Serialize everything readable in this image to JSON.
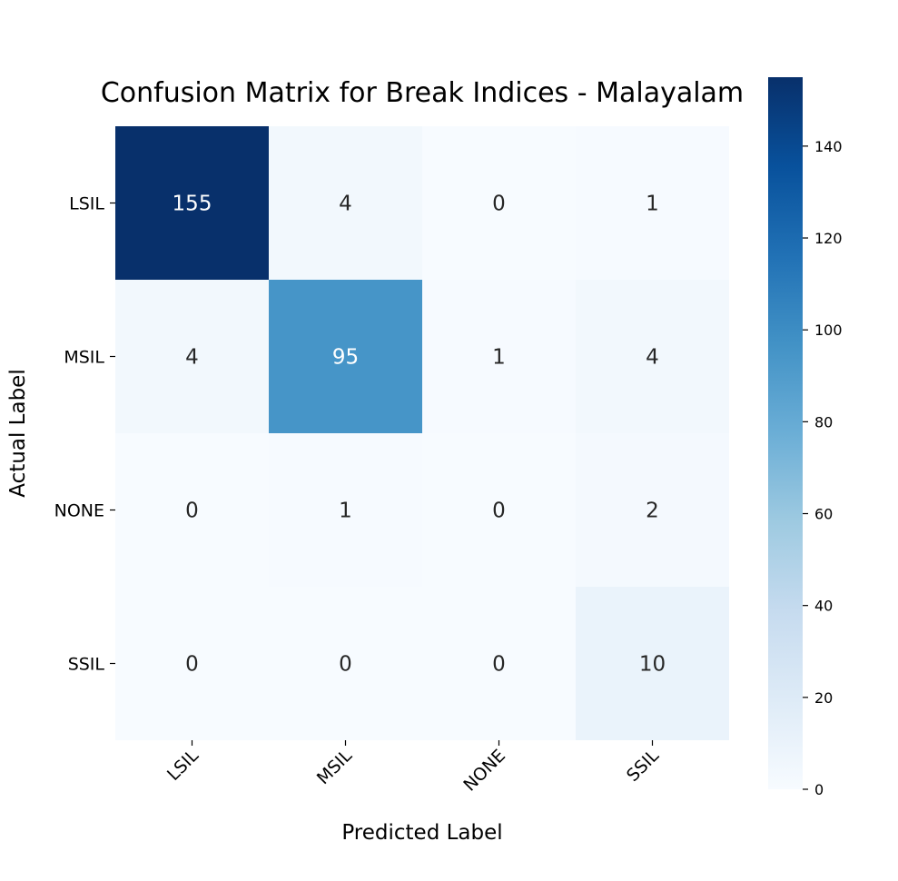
{
  "chart_data": {
    "type": "heatmap",
    "title": "Confusion Matrix for Break Indices - Malayalam",
    "xlabel": "Predicted Label",
    "ylabel": "Actual Label",
    "x_categories": [
      "LSIL",
      "MSIL",
      "NONE",
      "SSIL"
    ],
    "y_categories": [
      "LSIL",
      "MSIL",
      "NONE",
      "SSIL"
    ],
    "values": [
      [
        155,
        4,
        0,
        1
      ],
      [
        4,
        95,
        1,
        4
      ],
      [
        0,
        1,
        0,
        2
      ],
      [
        0,
        0,
        0,
        10
      ]
    ],
    "colormap": "Blues",
    "colorbar": {
      "range": [
        0,
        155
      ],
      "ticks": [
        "0",
        "20",
        "40",
        "60",
        "80",
        "100",
        "120",
        "140"
      ]
    },
    "colors": {
      "low": "#f7fbff",
      "high": "#08306b",
      "annotation_dark": "#262626",
      "annotation_light": "#ffffff"
    }
  }
}
